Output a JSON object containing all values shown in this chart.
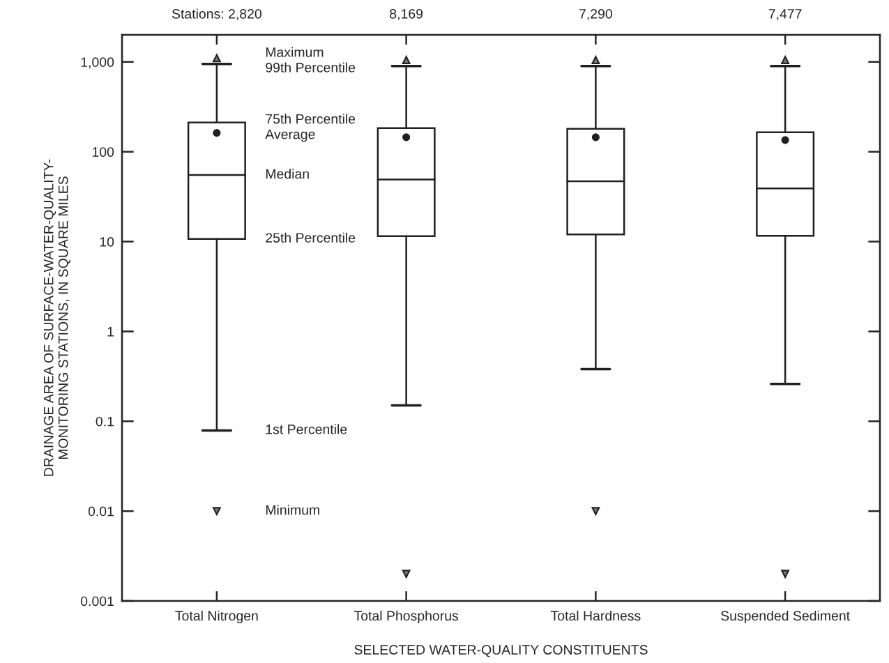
{
  "chart_data": {
    "type": "box",
    "xlabel": "SELECTED WATER-QUALITY CONSTITUENTS",
    "ylabel": "DRAINAGE AREA OF SURFACE-WATER-QUALITY-\nMONITORING STATIONS, IN SQUARE MILES",
    "categories": [
      "Total Nitrogen",
      "Total Phosphorus",
      "Total Hardness",
      "Suspended Sediment"
    ],
    "color": "#231f20",
    "boxes": [
      {
        "low": 0.079,
        "q1": 10.7,
        "median": 55,
        "q3": 211,
        "high": 950,
        "mean": 162,
        "outliers": [
          0.01,
          1100
        ]
      },
      {
        "low": 0.15,
        "q1": 11.5,
        "median": 49,
        "q3": 183,
        "high": 900,
        "mean": 145,
        "outliers": [
          0.002,
          1050
        ]
      },
      {
        "low": 0.38,
        "q1": 12,
        "median": 47,
        "q3": 180,
        "high": 900,
        "mean": 145,
        "outliers": [
          0.01,
          1050
        ]
      },
      {
        "low": 0.26,
        "q1": 11.6,
        "median": 39,
        "q3": 165,
        "high": 900,
        "mean": 135,
        "outliers": [
          0.002,
          1050
        ]
      }
    ],
    "log": "y",
    "ylim": [
      0.001,
      2000
    ],
    "yticks": [
      0.001,
      0.01,
      0.1,
      1,
      10,
      100,
      {
        "value": 1000,
        "label": "1,000"
      }
    ],
    "annotations": [
      "Stations: 2,820",
      "8,169",
      "7,290",
      "7,477",
      "Maximum",
      "99th Percentile",
      "75th Percentile",
      "Average",
      "Median",
      "25th Percentile",
      "1st Percentile",
      "Minimum"
    ],
    "grid": false
  }
}
